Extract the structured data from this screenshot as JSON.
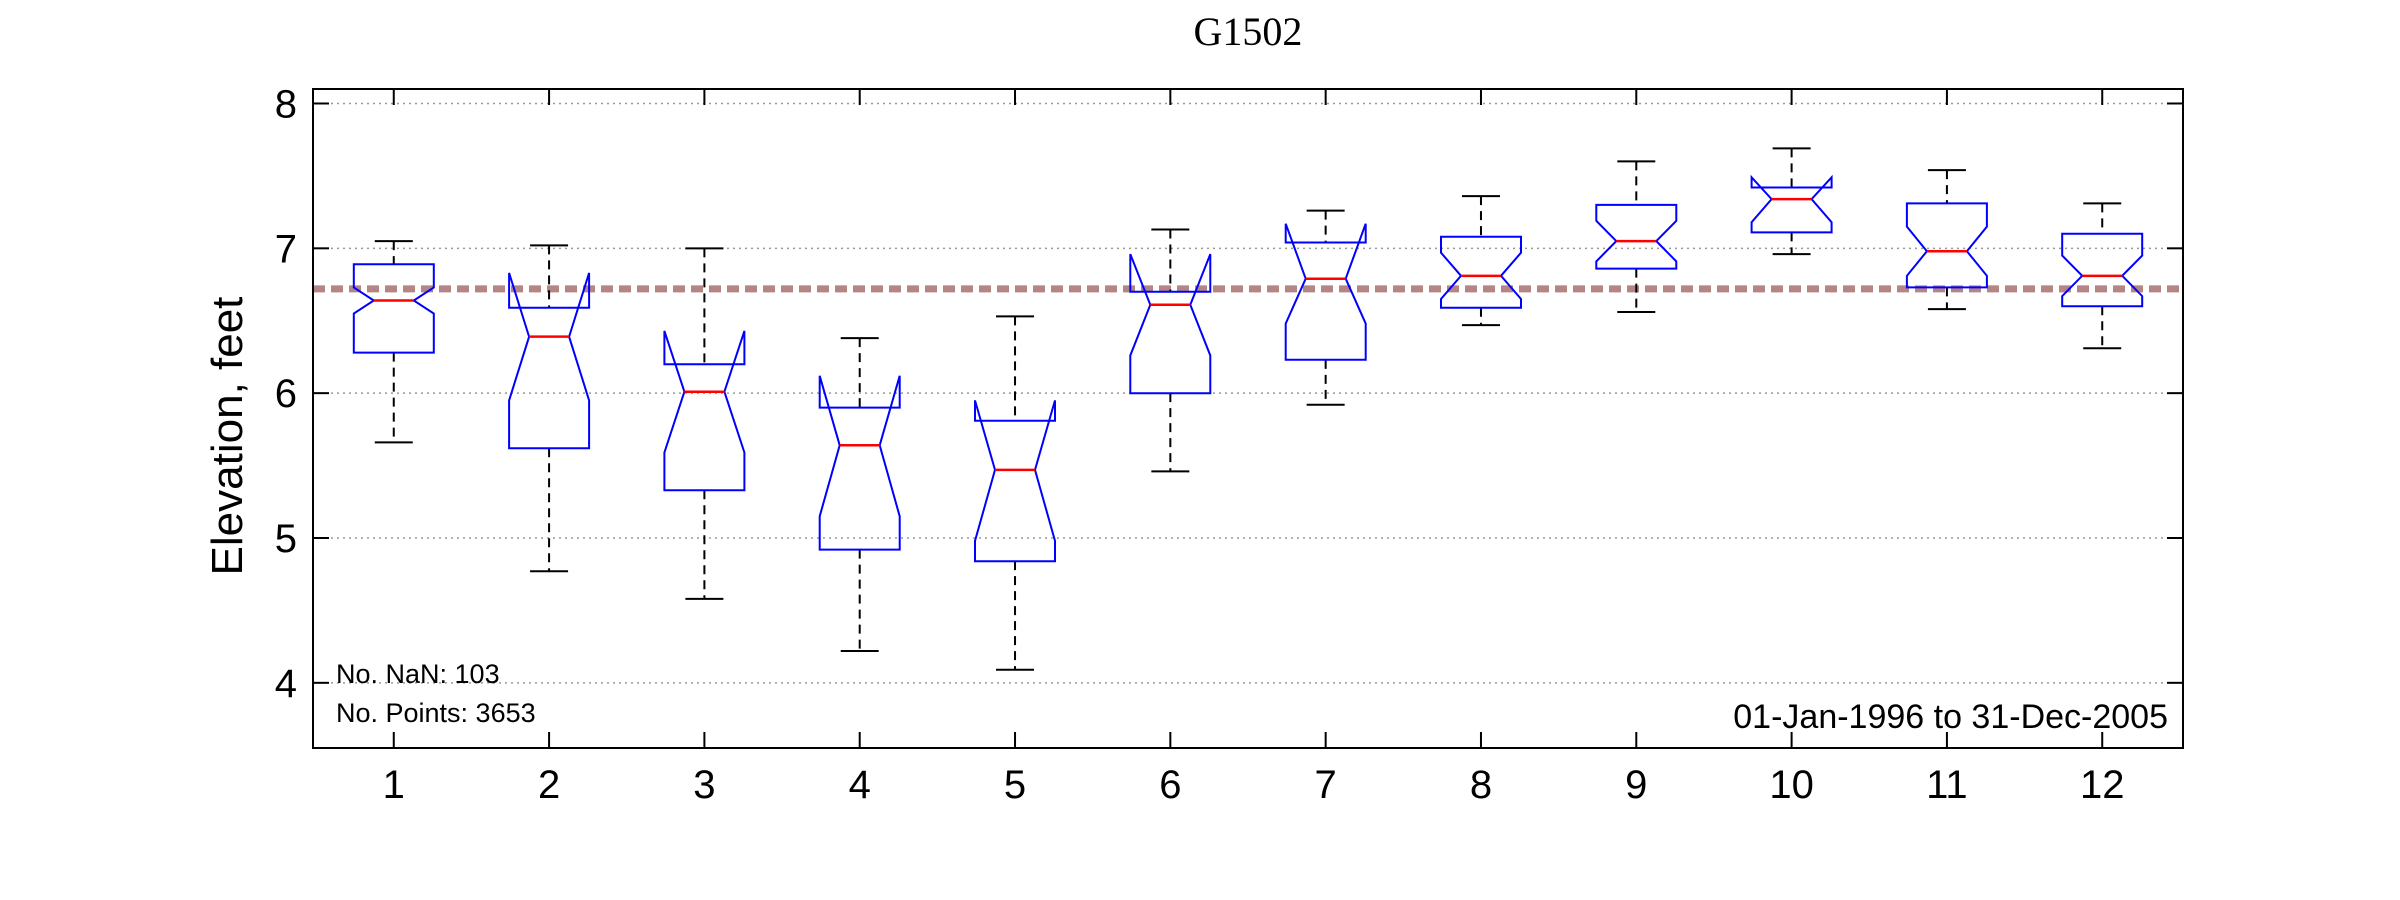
{
  "chart_data": {
    "type": "boxplot",
    "title": "G1502",
    "xlabel": "",
    "ylabel": "Elevation, feet",
    "ylim": [
      3.55,
      8.1
    ],
    "yticks": [
      4,
      5,
      6,
      7,
      8
    ],
    "grid": "horizontal dotted",
    "notched": true,
    "categories": [
      "1",
      "2",
      "3",
      "4",
      "5",
      "6",
      "7",
      "8",
      "9",
      "10",
      "11",
      "12"
    ],
    "boxes": [
      {
        "whisker_low": 5.66,
        "q1": 6.28,
        "median": 6.64,
        "q3": 6.89,
        "whisker_high": 7.05,
        "notch_low": 6.55,
        "notch_high": 6.73
      },
      {
        "whisker_low": 4.77,
        "q1": 5.62,
        "median": 6.39,
        "q3": 6.59,
        "whisker_high": 7.02,
        "notch_low": 5.95,
        "notch_high": 6.83
      },
      {
        "whisker_low": 4.58,
        "q1": 5.33,
        "median": 6.01,
        "q3": 6.2,
        "whisker_high": 7.0,
        "notch_low": 5.59,
        "notch_high": 6.43
      },
      {
        "whisker_low": 4.22,
        "q1": 4.92,
        "median": 5.64,
        "q3": 5.9,
        "whisker_high": 6.38,
        "notch_low": 5.15,
        "notch_high": 6.12
      },
      {
        "whisker_low": 4.09,
        "q1": 4.84,
        "median": 5.47,
        "q3": 5.81,
        "whisker_high": 6.53,
        "notch_low": 4.98,
        "notch_high": 5.95
      },
      {
        "whisker_low": 5.46,
        "q1": 6.0,
        "median": 6.61,
        "q3": 6.7,
        "whisker_high": 7.13,
        "notch_low": 6.26,
        "notch_high": 6.96
      },
      {
        "whisker_low": 5.92,
        "q1": 6.23,
        "median": 6.79,
        "q3": 7.04,
        "whisker_high": 7.26,
        "notch_low": 6.48,
        "notch_high": 7.17
      },
      {
        "whisker_low": 6.47,
        "q1": 6.59,
        "median": 6.81,
        "q3": 7.08,
        "whisker_high": 7.36,
        "notch_low": 6.65,
        "notch_high": 6.97
      },
      {
        "whisker_low": 6.56,
        "q1": 6.86,
        "median": 7.05,
        "q3": 7.3,
        "whisker_high": 7.6,
        "notch_low": 6.91,
        "notch_high": 7.19
      },
      {
        "whisker_low": 6.96,
        "q1": 7.11,
        "median": 7.34,
        "q3": 7.42,
        "whisker_high": 7.69,
        "notch_low": 7.18,
        "notch_high": 7.49
      },
      {
        "whisker_low": 6.58,
        "q1": 6.73,
        "median": 6.98,
        "q3": 7.31,
        "whisker_high": 7.54,
        "notch_low": 6.81,
        "notch_high": 7.15
      },
      {
        "whisker_low": 6.31,
        "q1": 6.6,
        "median": 6.81,
        "q3": 7.1,
        "whisker_high": 7.31,
        "notch_low": 6.67,
        "notch_high": 6.95
      }
    ],
    "reference_line": {
      "value": 6.72,
      "color": "#b58585",
      "style": "dashed"
    },
    "annotations": {
      "nan_count": "No. NaN: 103",
      "points_count": "No. Points: 3653",
      "date_range": "01-Jan-1996 to 31-Dec-2005"
    },
    "colors": {
      "box": "#0000ff",
      "median": "#ff0000",
      "whisker": "#000000",
      "grid": "#999999"
    }
  }
}
